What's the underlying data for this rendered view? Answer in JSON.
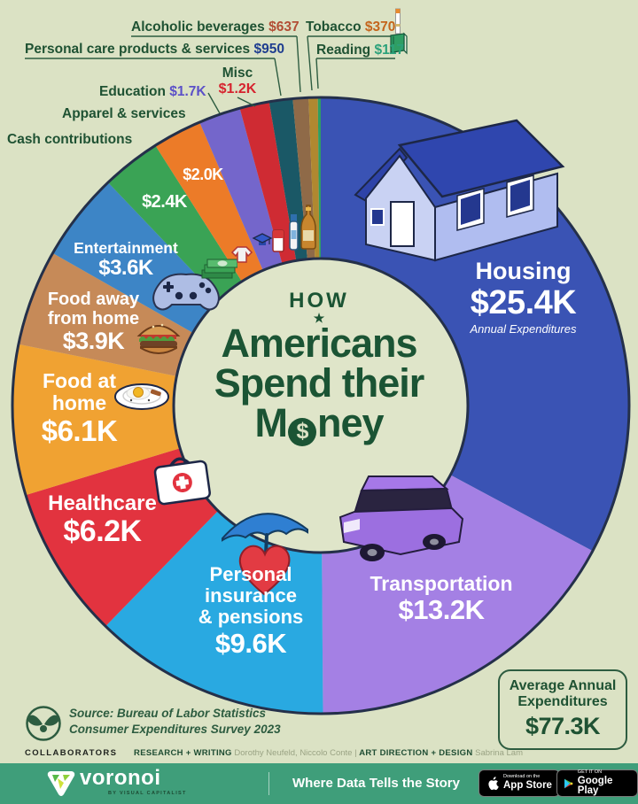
{
  "page": {
    "background": "#dbe2c4",
    "outline_color": "#24304a",
    "title_color": "#1b5434"
  },
  "title": {
    "kicker": "HOW",
    "star": "★",
    "line1": "Americans",
    "line2": "Spend their",
    "money_prefix": "M",
    "coin_symbol": "$",
    "money_suffix": "ney"
  },
  "chart_data": {
    "type": "pie",
    "title": "How Americans Spend their Money",
    "subtitle": "Annual Expenditures",
    "total": {
      "label": "Average Annual Expenditures",
      "display": "$77.3K",
      "value_thousands_usd": 77.3
    },
    "units": "USD per year (K = thousands)",
    "legend_position": "labels-on-slices",
    "segments": [
      {
        "name": "Housing",
        "value": 25.4,
        "display": "$25.4K",
        "color": "#3a53b4",
        "note": "Annual Expenditures"
      },
      {
        "name": "Transportation",
        "value": 13.2,
        "display": "$13.2K",
        "color": "#a480e4"
      },
      {
        "name": "Personal insurance & pensions",
        "lines": [
          "Personal",
          "insurance",
          "& pensions"
        ],
        "value": 9.6,
        "display": "$9.6K",
        "color": "#29a9e1"
      },
      {
        "name": "Healthcare",
        "value": 6.2,
        "display": "$6.2K",
        "color": "#e2333f"
      },
      {
        "name": "Food at home",
        "lines": [
          "Food at",
          "home"
        ],
        "value": 6.1,
        "display": "$6.1K",
        "color": "#f0a232"
      },
      {
        "name": "Food away from home",
        "lines": [
          "Food away",
          "from home"
        ],
        "value": 3.9,
        "display": "$3.9K",
        "color": "#c68a58"
      },
      {
        "name": "Entertainment",
        "value": 3.6,
        "display": "$3.6K",
        "color": "#3d85c6"
      },
      {
        "name": "Cash contributions",
        "value": 2.4,
        "display": "$2.4K",
        "color": "#3aa355"
      },
      {
        "name": "Apparel & services",
        "value": 2.0,
        "display": "$2.0K",
        "color": "#ec7b28"
      },
      {
        "name": "Education",
        "value": 1.7,
        "display": "$1.7K",
        "color": "#7466cb",
        "value_color": "#5b50c8"
      },
      {
        "name": "Misc",
        "value": 1.2,
        "display": "$1.2K",
        "color": "#cf2b33",
        "value_color": "#d6232e"
      },
      {
        "name": "Personal care products & services",
        "value": 0.95,
        "display": "$950",
        "color": "#1a5866",
        "value_color": "#1e3d8f"
      },
      {
        "name": "Alcoholic beverages",
        "value": 0.637,
        "display": "$637",
        "color": "#8f6a48",
        "value_color": "#b24e35"
      },
      {
        "name": "Tobacco",
        "value": 0.37,
        "display": "$370",
        "color": "#b08830",
        "value_color": "#c4651c"
      },
      {
        "name": "Reading",
        "value": 0.117,
        "display": "$117",
        "color": "#2f9e63",
        "value_color": "#2ba17a"
      }
    ]
  },
  "average_box": {
    "line1": "Average Annual",
    "line2": "Expenditures",
    "value": "$77.3K"
  },
  "source": {
    "line1": "Source: Bureau of Labor Statistics",
    "line2": "Consumer Expenditures Survey 2023"
  },
  "collaborators": {
    "heading": "COLLABORATORS",
    "research_label": "RESEARCH + WRITING",
    "research_names": "Dorothy Neufeld, Niccolo Conte",
    "divider": "|",
    "design_label": "ART DIRECTION + DESIGN",
    "design_names": "Sabrina Lam"
  },
  "footer": {
    "brand": "voronoi",
    "brand_sub": "BY VISUAL CAPITALIST",
    "tagline": "Where Data Tells the Story",
    "appstore_badge": {
      "line1": "Download on the",
      "line2": "App Store"
    },
    "googleplay_badge": {
      "line1": "GET IT ON",
      "line2": "Google Play"
    }
  }
}
